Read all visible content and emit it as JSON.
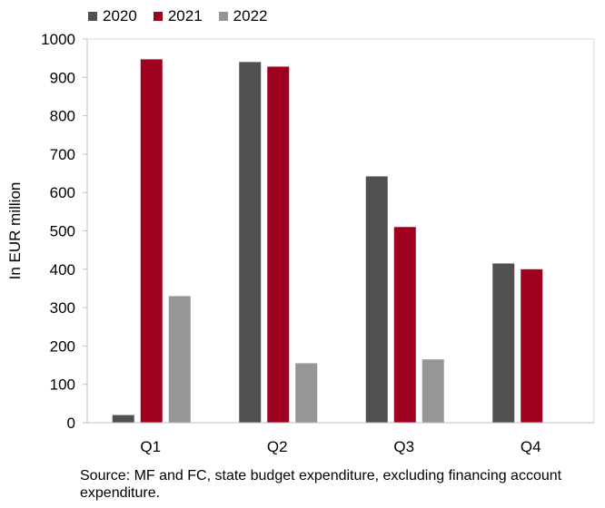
{
  "chart_data": {
    "type": "bar",
    "categories": [
      "Q1",
      "Q2",
      "Q3",
      "Q4"
    ],
    "series": [
      {
        "name": "2020",
        "color": "#505050",
        "values": [
          20,
          940,
          642,
          415
        ]
      },
      {
        "name": "2021",
        "color": "#a00020",
        "values": [
          947,
          928,
          510,
          400
        ]
      },
      {
        "name": "2022",
        "color": "#969696",
        "values": [
          330,
          155,
          165,
          null
        ]
      }
    ],
    "ylabel": "In EUR million",
    "ylim": [
      0,
      1000
    ],
    "yticks": [
      0,
      100,
      200,
      300,
      400,
      500,
      600,
      700,
      800,
      900,
      1000
    ],
    "grid": false,
    "legend": "top-left"
  },
  "source_note": "Source: MF and FC, state budget expenditure, excluding financing account expenditure."
}
